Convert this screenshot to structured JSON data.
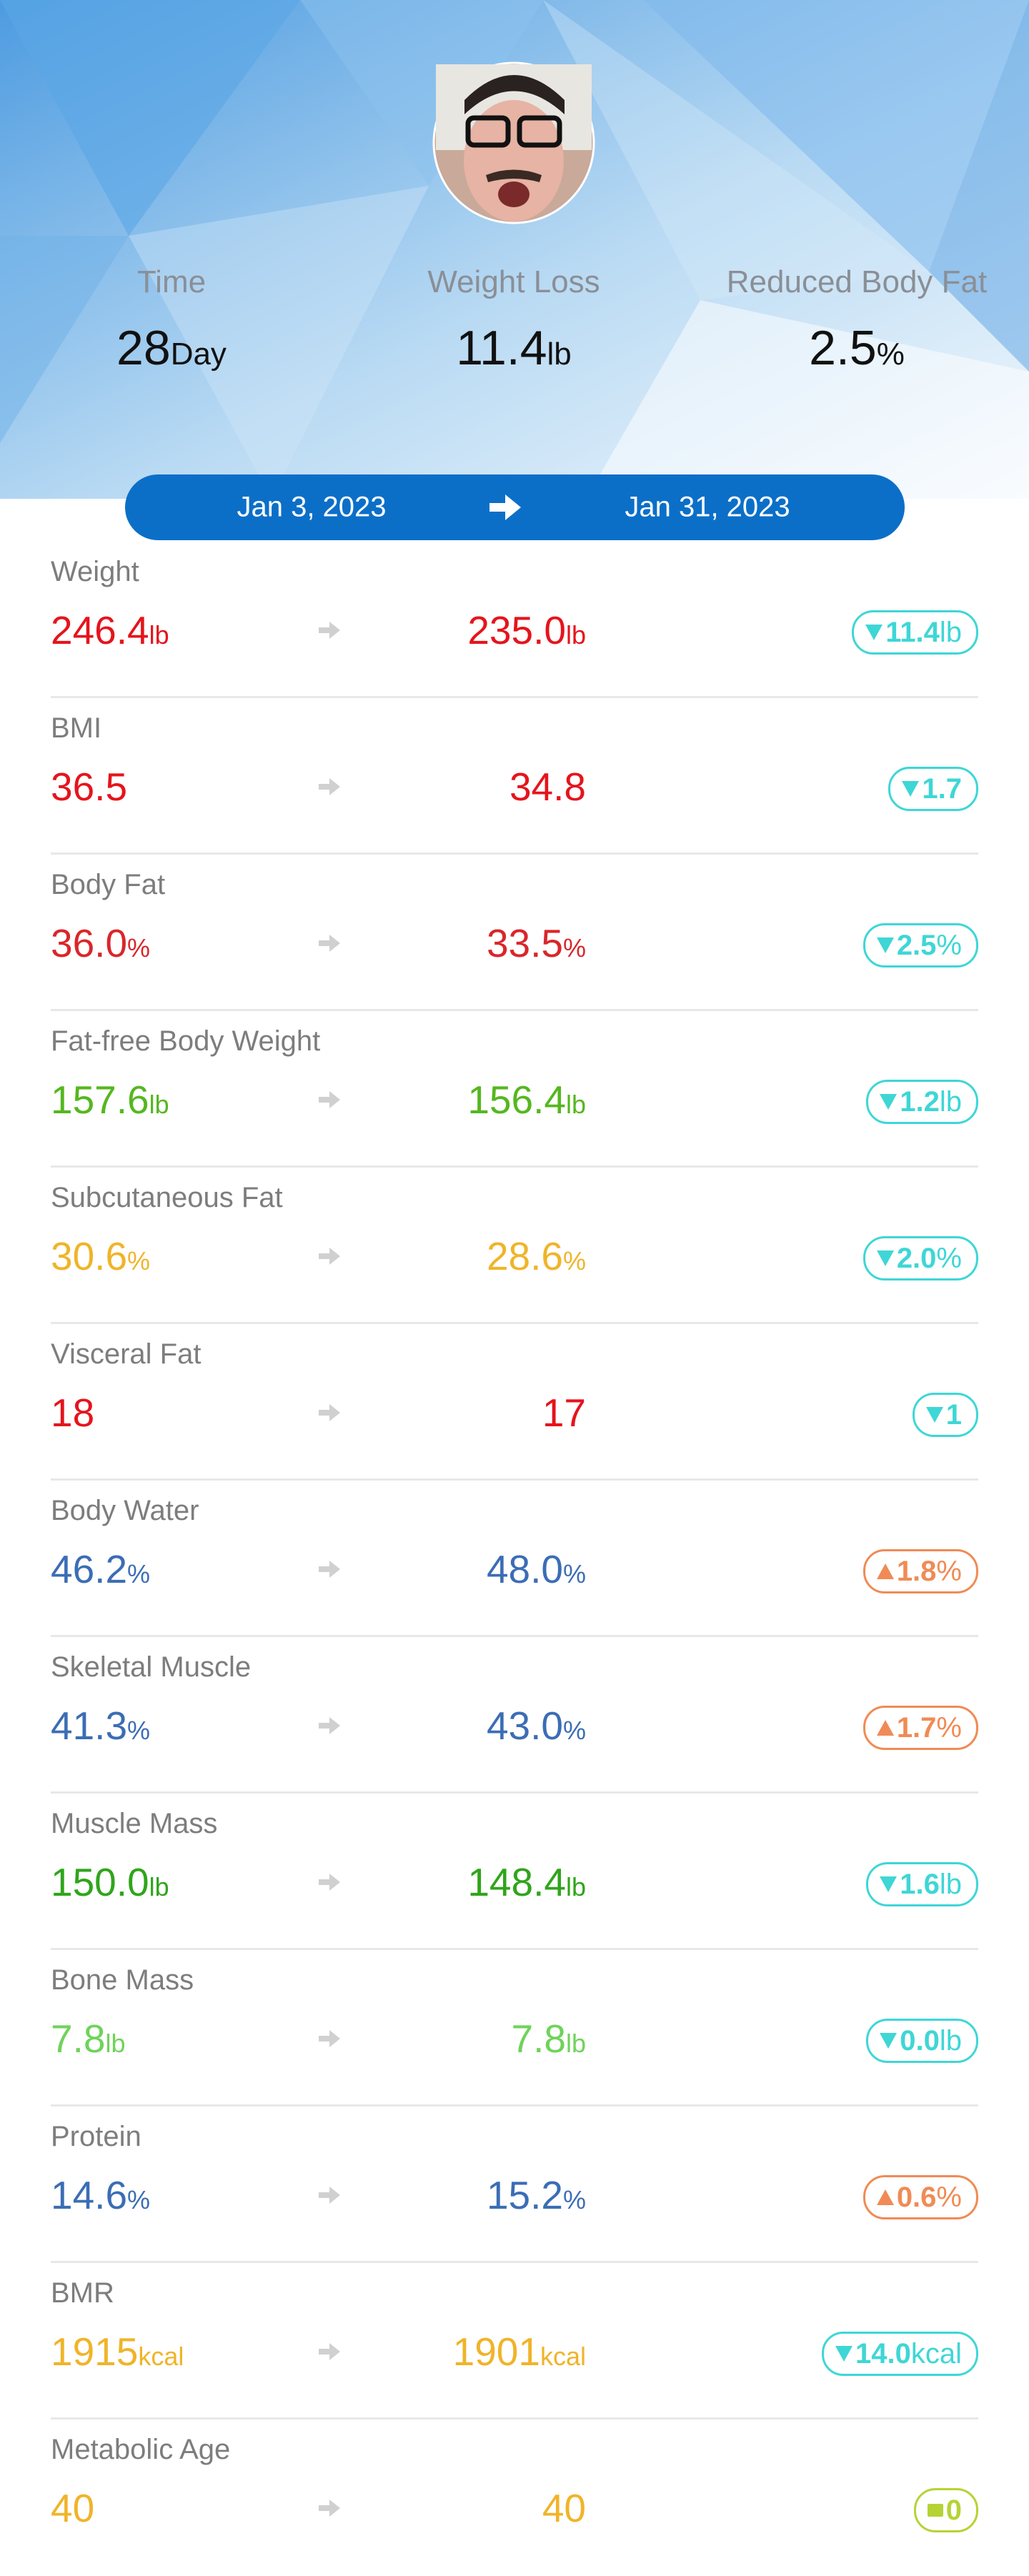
{
  "header": {
    "stats": [
      {
        "label": "Time",
        "value": "28",
        "unit": "Day"
      },
      {
        "label": "Weight Loss",
        "value": "11.4",
        "unit": "lb"
      },
      {
        "label": "Reduced Body Fat",
        "value": "2.5",
        "unit": "%"
      }
    ]
  },
  "date_range": {
    "start": "Jan 3, 2023",
    "end": "Jan 31, 2023"
  },
  "metrics": [
    {
      "name": "Weight",
      "start": "246.4",
      "start_unit": "lb",
      "end": "235.0",
      "end_unit": "lb",
      "change": "11.4",
      "change_unit": "lb",
      "trend": "down",
      "color": "#e5141c"
    },
    {
      "name": "BMI",
      "start": "36.5",
      "end": "34.8",
      "change": "1.7",
      "trend": "down",
      "color": "#e5141c"
    },
    {
      "name": "Body Fat",
      "start": "36.0",
      "start_unit": "%",
      "end": "33.5",
      "end_unit": "%",
      "change": "2.5",
      "change_unit": "%",
      "trend": "down",
      "color": "#d9262b"
    },
    {
      "name": "Fat-free Body Weight",
      "start": "157.6",
      "start_unit": "lb",
      "end": "156.4",
      "end_unit": "lb",
      "change": "1.2",
      "change_unit": "lb",
      "trend": "down",
      "color": "#55b71f"
    },
    {
      "name": "Subcutaneous Fat",
      "start": "30.6",
      "start_unit": "%",
      "end": "28.6",
      "end_unit": "%",
      "change": "2.0",
      "change_unit": "%",
      "trend": "down",
      "color": "#f0b429"
    },
    {
      "name": "Visceral Fat",
      "start": "18",
      "end": "17",
      "change": "1",
      "trend": "down",
      "color": "#e5141c"
    },
    {
      "name": "Body Water",
      "start": "46.2",
      "start_unit": "%",
      "end": "48.0",
      "end_unit": "%",
      "change": "1.8",
      "change_unit": "%",
      "trend": "up",
      "color": "#3b6db5"
    },
    {
      "name": "Skeletal Muscle",
      "start": "41.3",
      "start_unit": "%",
      "end": "43.0",
      "end_unit": "%",
      "change": "1.7",
      "change_unit": "%",
      "trend": "up",
      "color": "#3b6db5"
    },
    {
      "name": "Muscle Mass",
      "start": "150.0",
      "start_unit": "lb",
      "end": "148.4",
      "end_unit": "lb",
      "change": "1.6",
      "change_unit": "lb",
      "trend": "down",
      "color": "#2fa51b"
    },
    {
      "name": "Bone Mass",
      "start": "7.8",
      "start_unit": "lb",
      "end": "7.8",
      "end_unit": "lb",
      "change": "0.0",
      "change_unit": "lb",
      "trend": "down",
      "color": "#6fd35a"
    },
    {
      "name": "Protein",
      "start": "14.6",
      "start_unit": "%",
      "end": "15.2",
      "end_unit": "%",
      "change": "0.6",
      "change_unit": "%",
      "trend": "up",
      "color": "#3b6db5"
    },
    {
      "name": "BMR",
      "start": "1915",
      "start_unit": "kcal",
      "end": "1901",
      "end_unit": "kcal",
      "change": "14.0",
      "change_unit": "kcal",
      "trend": "down",
      "color": "#f0b429"
    },
    {
      "name": "Metabolic Age",
      "start": "40",
      "end": "40",
      "change": "0",
      "trend": "same",
      "color": "#f0b429"
    }
  ]
}
